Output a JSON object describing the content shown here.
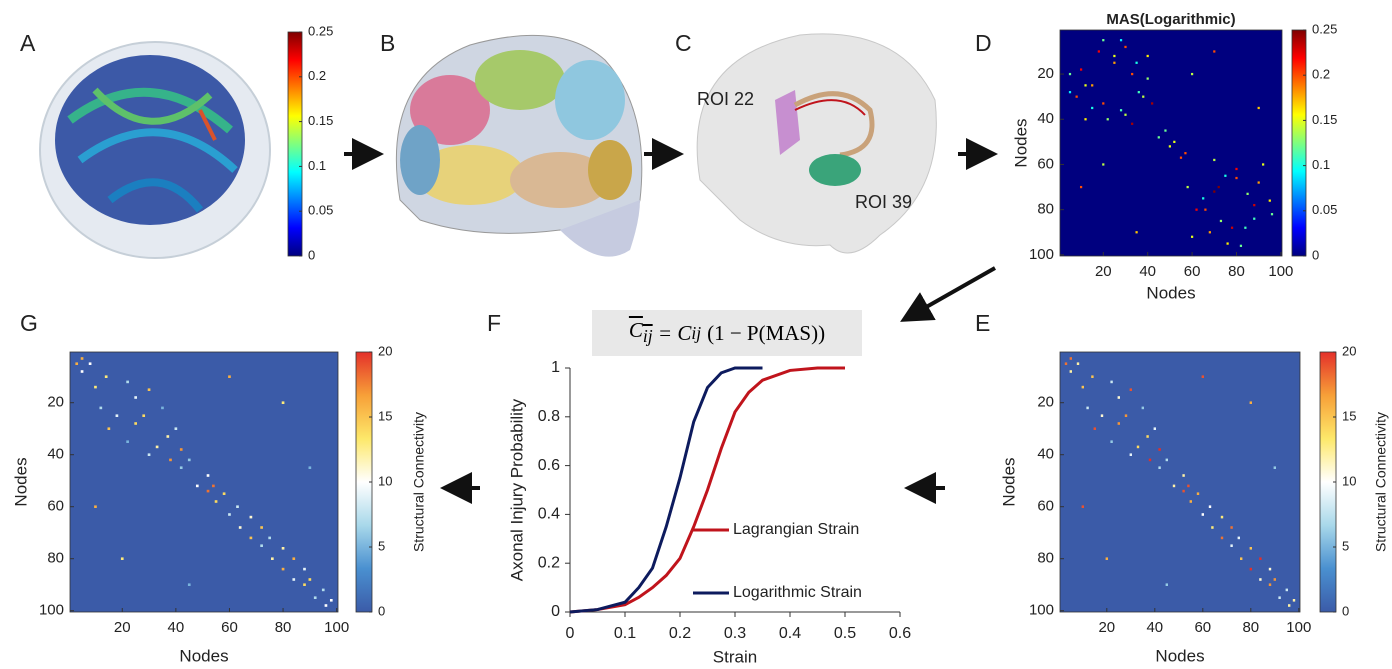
{
  "panel_labels": [
    "A",
    "B",
    "C",
    "D",
    "E",
    "F",
    "G"
  ],
  "roi_labels": [
    "ROI 22",
    "ROI 39"
  ],
  "formula": {
    "lhs": "C",
    "lhs_sub": "ij",
    "rhs": "= C",
    "rhs_sub": "ij",
    "rest": "(1 − P(MAS))"
  },
  "chart_data": [
    {
      "type": "colorbar",
      "ylim": [
        0,
        0.25
      ],
      "yticks": [
        0,
        0.05,
        0.1,
        0.15,
        0.2,
        0.25
      ],
      "colormap": [
        "#00007f",
        "#0000ff",
        "#007fff",
        "#00ffff",
        "#7fff7f",
        "#ffff00",
        "#ff7f00",
        "#ff0000",
        "#7f0000"
      ]
    },
    {
      "type": "heatmap",
      "title": "MAS(Logarithmic)",
      "xlabel": "Nodes",
      "ylabel": "Nodes",
      "xlim": [
        0.5,
        100.5
      ],
      "ylim": [
        0.5,
        100.5
      ],
      "xticks": [
        20,
        40,
        60,
        80,
        100
      ],
      "yticks": [
        20,
        40,
        60,
        80,
        100
      ],
      "clim": [
        0,
        0.25
      ],
      "cticks": [
        0,
        0.05,
        0.1,
        0.15,
        0.2,
        0.25
      ],
      "colormap": [
        "#00007f",
        "#0000ff",
        "#007fff",
        "#00ffff",
        "#7fff7f",
        "#ffff00",
        "#ff7f00",
        "#ff0000",
        "#7f0000"
      ],
      "cells": [
        [
          5,
          20,
          0.12
        ],
        [
          8,
          30,
          0.2
        ],
        [
          12,
          25,
          0.15
        ],
        [
          15,
          35,
          0.1
        ],
        [
          18,
          10,
          0.22
        ],
        [
          22,
          40,
          0.13
        ],
        [
          25,
          15,
          0.18
        ],
        [
          28,
          5,
          0.09
        ],
        [
          30,
          38,
          0.14
        ],
        [
          33,
          20,
          0.2
        ],
        [
          36,
          28,
          0.11
        ],
        [
          40,
          12,
          0.16
        ],
        [
          42,
          33,
          0.24
        ],
        [
          45,
          48,
          0.12
        ],
        [
          50,
          52,
          0.15
        ],
        [
          55,
          57,
          0.2
        ],
        [
          58,
          70,
          0.14
        ],
        [
          62,
          80,
          0.22
        ],
        [
          65,
          75,
          0.1
        ],
        [
          68,
          90,
          0.18
        ],
        [
          70,
          72,
          0.25
        ],
        [
          73,
          85,
          0.13
        ],
        [
          76,
          95,
          0.16
        ],
        [
          80,
          66,
          0.2
        ],
        [
          84,
          88,
          0.11
        ],
        [
          88,
          78,
          0.23
        ],
        [
          92,
          60,
          0.15
        ],
        [
          96,
          82,
          0.12
        ],
        [
          10,
          70,
          0.2
        ],
        [
          35,
          90,
          0.17
        ],
        [
          20,
          60,
          0.14
        ]
      ]
    },
    {
      "type": "heatmap",
      "xlabel": "Nodes",
      "ylabel": "Nodes",
      "clabel": "Structural Connectivity",
      "xlim": [
        0.5,
        100.5
      ],
      "ylim": [
        0.5,
        100.5
      ],
      "xticks": [
        20,
        40,
        60,
        80,
        100
      ],
      "yticks": [
        20,
        40,
        60,
        80,
        100
      ],
      "clim": [
        0,
        20
      ],
      "cticks": [
        0,
        5,
        10,
        15,
        20
      ],
      "colormap": [
        "#3b5ba8",
        "#4a90d0",
        "#a8d8ea",
        "#ffffff",
        "#fde86a",
        "#f7a038",
        "#e4302a"
      ],
      "cells": [
        [
          3,
          5,
          18
        ],
        [
          5,
          8,
          12
        ],
        [
          10,
          14,
          15
        ],
        [
          12,
          22,
          8
        ],
        [
          15,
          30,
          19
        ],
        [
          18,
          25,
          11
        ],
        [
          22,
          35,
          6
        ],
        [
          25,
          28,
          17
        ],
        [
          30,
          40,
          9
        ],
        [
          33,
          37,
          14
        ],
        [
          38,
          42,
          20
        ],
        [
          42,
          45,
          7
        ],
        [
          48,
          52,
          12
        ],
        [
          52,
          54,
          19
        ],
        [
          55,
          58,
          16
        ],
        [
          60,
          63,
          10
        ],
        [
          64,
          68,
          13
        ],
        [
          68,
          72,
          18
        ],
        [
          72,
          75,
          9
        ],
        [
          76,
          80,
          15
        ],
        [
          80,
          84,
          20
        ],
        [
          84,
          88,
          11
        ],
        [
          88,
          90,
          17
        ],
        [
          92,
          95,
          8
        ],
        [
          96,
          98,
          12
        ],
        [
          20,
          80,
          16
        ],
        [
          45,
          90,
          6
        ],
        [
          10,
          60,
          19
        ]
      ]
    },
    {
      "type": "line",
      "xlabel": "Strain",
      "ylabel": "Axonal Injury Probability",
      "x": [
        0,
        0.05,
        0.1,
        0.125,
        0.15,
        0.175,
        0.2,
        0.225,
        0.25,
        0.275,
        0.3,
        0.325,
        0.35,
        0.4,
        0.45,
        0.5
      ],
      "series": [
        {
          "name": "Lagrangian Strain",
          "color": "#c0141c",
          "values": [
            0,
            0.01,
            0.03,
            0.06,
            0.1,
            0.15,
            0.22,
            0.35,
            0.5,
            0.67,
            0.82,
            0.9,
            0.95,
            0.99,
            1,
            1
          ]
        },
        {
          "name": "Logarithmic Strain",
          "color": "#0d1b5e",
          "values": [
            0,
            0.01,
            0.04,
            0.1,
            0.18,
            0.35,
            0.55,
            0.78,
            0.92,
            0.98,
            1,
            1,
            1,
            null,
            null,
            null
          ]
        }
      ],
      "xlim": [
        0,
        0.6
      ],
      "ylim": [
        0,
        1
      ],
      "xticks": [
        0,
        0.1,
        0.2,
        0.3,
        0.4,
        0.5,
        0.6
      ],
      "yticks": [
        0,
        0.2,
        0.4,
        0.6,
        0.8,
        1
      ],
      "legend": "lower right"
    },
    {
      "type": "heatmap",
      "xlabel": "Nodes",
      "ylabel": "Nodes",
      "clabel": "Structural Connectivity",
      "xlim": [
        0.5,
        100.5
      ],
      "ylim": [
        0.5,
        100.5
      ],
      "xticks": [
        20,
        40,
        60,
        80,
        100
      ],
      "yticks": [
        20,
        40,
        60,
        80,
        100
      ],
      "clim": [
        0,
        20
      ],
      "cticks": [
        0,
        5,
        10,
        15,
        20
      ],
      "colormap": [
        "#3b5ba8",
        "#4a90d0",
        "#a8d8ea",
        "#ffffff",
        "#fde86a",
        "#f7a038",
        "#e4302a"
      ],
      "cells": [
        [
          3,
          5,
          16
        ],
        [
          5,
          8,
          10
        ],
        [
          10,
          14,
          13
        ],
        [
          12,
          22,
          7
        ],
        [
          15,
          30,
          15
        ],
        [
          18,
          25,
          9
        ],
        [
          22,
          35,
          5
        ],
        [
          25,
          28,
          14
        ],
        [
          30,
          40,
          8
        ],
        [
          33,
          37,
          12
        ],
        [
          38,
          42,
          17
        ],
        [
          42,
          45,
          6
        ],
        [
          48,
          52,
          10
        ],
        [
          52,
          54,
          18
        ],
        [
          55,
          58,
          14
        ],
        [
          60,
          63,
          8
        ],
        [
          64,
          68,
          11
        ],
        [
          68,
          72,
          15
        ],
        [
          72,
          75,
          7
        ],
        [
          76,
          80,
          12
        ],
        [
          80,
          84,
          16
        ],
        [
          84,
          88,
          9
        ],
        [
          88,
          90,
          14
        ],
        [
          92,
          95,
          7
        ],
        [
          96,
          98,
          10
        ],
        [
          20,
          80,
          13
        ],
        [
          45,
          90,
          5
        ],
        [
          10,
          60,
          16
        ]
      ]
    }
  ]
}
